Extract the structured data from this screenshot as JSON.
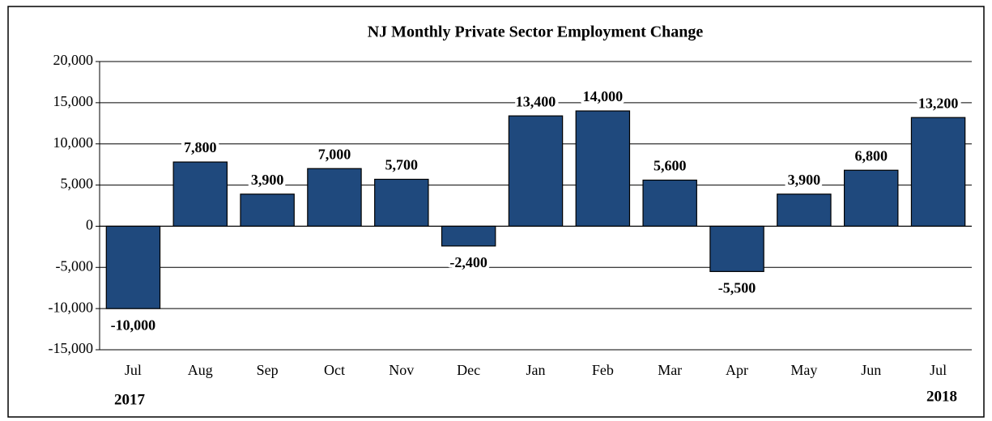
{
  "chart_data": {
    "type": "bar",
    "title": "NJ Monthly Private Sector Employment Change",
    "categories": [
      "Jul",
      "Aug",
      "Sep",
      "Oct",
      "Nov",
      "Dec",
      "Jan",
      "Feb",
      "Mar",
      "Apr",
      "May",
      "Jun",
      "Jul"
    ],
    "values": [
      -10000,
      7800,
      3900,
      7000,
      5700,
      -2400,
      13400,
      14000,
      5600,
      -5500,
      3900,
      6800,
      13200
    ],
    "value_labels": [
      "-10,000",
      "7,800",
      "3,900",
      "7,000",
      "5,700",
      "-2,400",
      "13,400",
      "14,000",
      "5,600",
      "-5,500",
      "3,900",
      "6,800",
      "13,200"
    ],
    "color": "#1f497d",
    "ylim": [
      -15000,
      20000
    ],
    "yticks": [
      {
        "value": -15000,
        "label": "-15,000"
      },
      {
        "value": -10000,
        "label": "-10,000"
      },
      {
        "value": -5000,
        "label": "-5,000"
      },
      0,
      {
        "value": 5000,
        "label": "5,000"
      },
      {
        "value": 10000,
        "label": "10,000"
      },
      {
        "value": 15000,
        "label": "15,000"
      },
      {
        "value": 20000,
        "label": "20,000"
      }
    ],
    "grid": true,
    "annotations": [
      "2017",
      "2018"
    ]
  }
}
